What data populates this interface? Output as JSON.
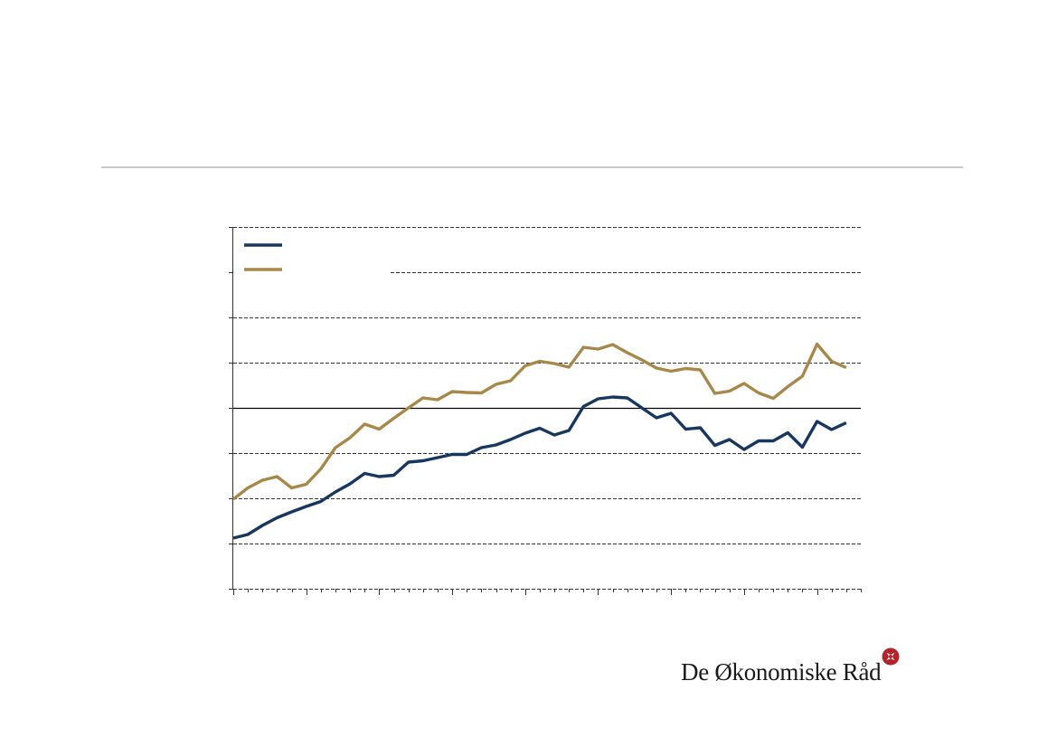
{
  "brand": {
    "name": "De Økonomiske Råd",
    "logo_icon": "rosette-logo-icon",
    "accent": "#b3232a"
  },
  "colors": {
    "series1": "#17375e",
    "series2": "#a8884a",
    "grid": "#333333"
  },
  "chart_data": {
    "type": "line",
    "title": "",
    "xlabel": "",
    "ylabel": "",
    "ylim": [
      -4,
      4
    ],
    "xlim": [
      0,
      43
    ],
    "yticks": [
      -4,
      -3,
      -2,
      -1,
      0,
      1,
      2,
      3,
      4
    ],
    "grid": true,
    "baseline": 0,
    "legend": "top-left",
    "series": [
      {
        "values": [
          -2.88,
          -2.8,
          -2.6,
          -2.43,
          -2.3,
          -2.18,
          -2.07,
          -1.86,
          -1.68,
          -1.45,
          -1.52,
          -1.49,
          -1.2,
          -1.17,
          -1.1,
          -1.03,
          -1.03,
          -0.88,
          -0.82,
          -0.7,
          -0.56,
          -0.45,
          -0.6,
          -0.5,
          0.03,
          0.2,
          0.24,
          0.22,
          0.0,
          -0.22,
          -0.12,
          -0.47,
          -0.44,
          -0.83,
          -0.7,
          -0.92,
          -0.73,
          -0.73,
          -0.55,
          -0.87,
          -0.3,
          -0.48,
          -0.33
        ]
      },
      {
        "values": [
          -2.02,
          -1.77,
          -1.6,
          -1.52,
          -1.77,
          -1.69,
          -1.35,
          -0.88,
          -0.66,
          -0.36,
          -0.47,
          -0.23,
          0.0,
          0.22,
          0.18,
          0.36,
          0.34,
          0.33,
          0.52,
          0.6,
          0.93,
          1.03,
          0.98,
          0.9,
          1.34,
          1.3,
          1.4,
          1.22,
          1.06,
          0.88,
          0.81,
          0.87,
          0.84,
          0.32,
          0.37,
          0.54,
          0.33,
          0.21,
          0.47,
          0.7,
          1.41,
          1.03,
          0.89
        ]
      }
    ]
  }
}
